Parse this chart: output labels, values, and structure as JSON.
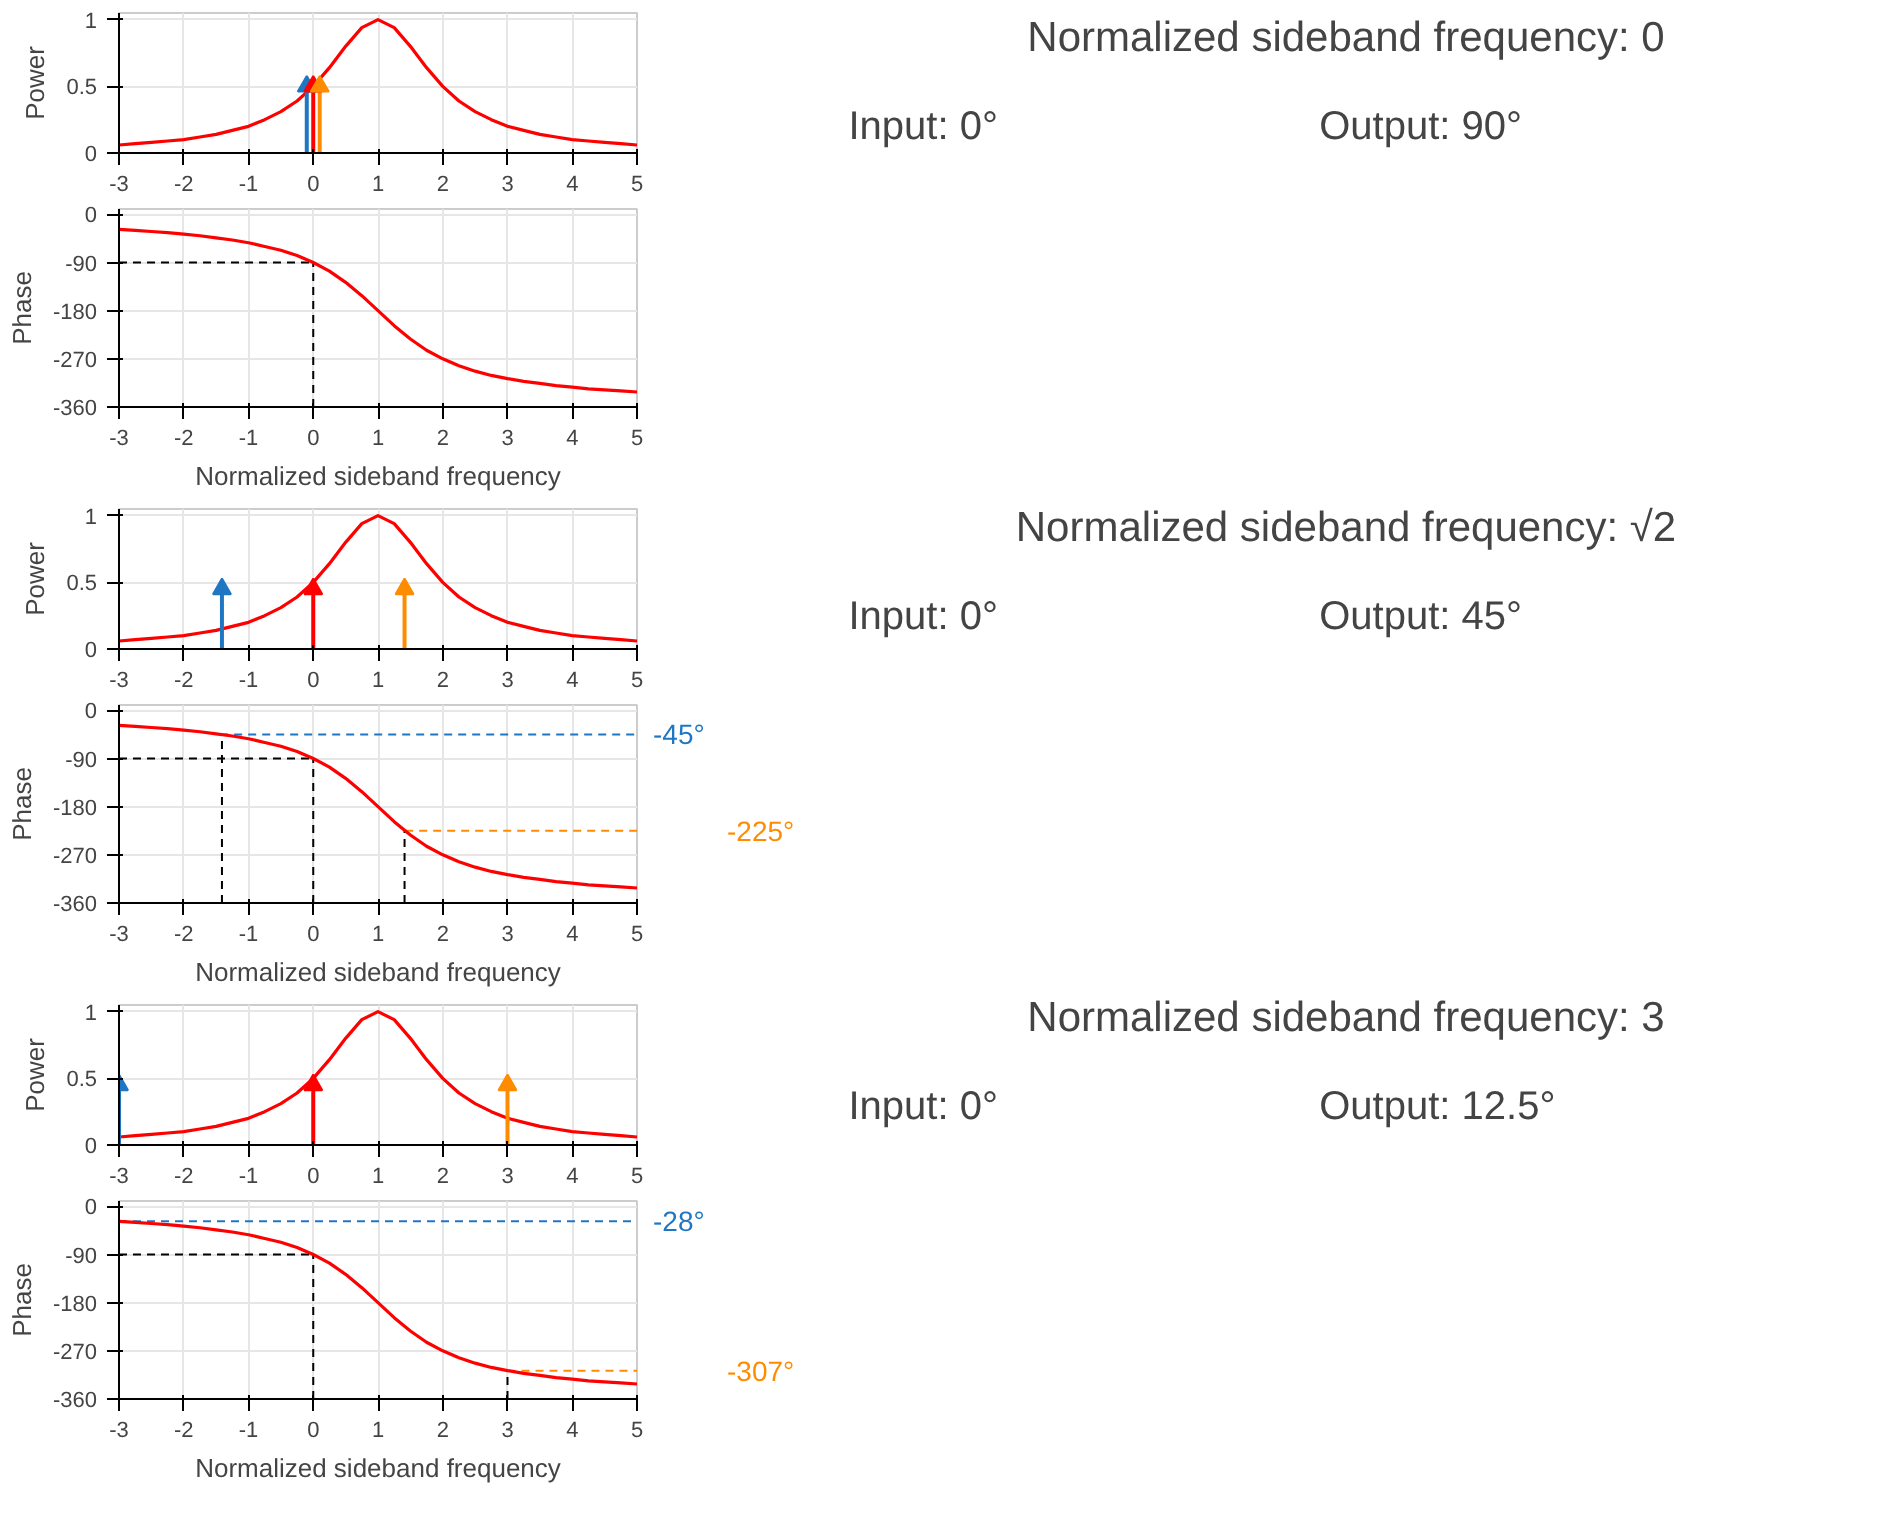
{
  "chart_data": [
    {
      "type": "line",
      "ylabel": "Power",
      "xlim": [
        -3,
        5
      ],
      "xticks": [
        -3,
        -2,
        -1,
        0,
        1,
        2,
        3,
        4,
        5
      ],
      "ylim": [
        0,
        1.05
      ],
      "yticks": [
        0,
        0.5,
        1
      ],
      "grid": true,
      "x": [
        -3,
        -2.75,
        -2.5,
        -2.25,
        -2,
        -1.75,
        -1.5,
        -1.25,
        -1,
        -0.75,
        -0.5,
        -0.25,
        0,
        0.25,
        0.5,
        0.75,
        1,
        1.25,
        1.5,
        1.75,
        2,
        2.25,
        2.5,
        2.75,
        3,
        3.25,
        3.5,
        3.75,
        4,
        4.25,
        4.5,
        4.75,
        5
      ],
      "series": [
        {
          "type": "line",
          "color": "#ff0000",
          "values": [
            0.06,
            0.07,
            0.08,
            0.09,
            0.1,
            0.12,
            0.14,
            0.17,
            0.2,
            0.25,
            0.31,
            0.39,
            0.5,
            0.64,
            0.8,
            0.94,
            1,
            0.94,
            0.8,
            0.64,
            0.5,
            0.39,
            0.31,
            0.25,
            0.2,
            0.17,
            0.14,
            0.12,
            0.1,
            0.09,
            0.08,
            0.07,
            0.06
          ]
        },
        {
          "type": "lollipop",
          "x": [
            -0.1,
            0,
            0.1
          ],
          "values": [
            0.5,
            0.5,
            0.5
          ],
          "colors": [
            "#1f77c4",
            "#ff0000",
            "#ff8c00"
          ]
        }
      ]
    },
    {
      "type": "line",
      "ylabel": "Phase",
      "xlabel": "Normalized sideband frequency",
      "xlim": [
        -3,
        5
      ],
      "xticks": [
        -3,
        -2,
        -1,
        0,
        1,
        2,
        3,
        4,
        5
      ],
      "ylim": [
        -360,
        10
      ],
      "yticks": [
        0,
        -90,
        -180,
        -270,
        -360
      ],
      "grid": true,
      "x": [
        -3,
        -2.75,
        -2.5,
        -2.25,
        -2,
        -1.75,
        -1.5,
        -1.25,
        -1,
        -0.75,
        -0.5,
        -0.25,
        0,
        0.25,
        0.5,
        0.75,
        1,
        1.25,
        1.5,
        1.75,
        2,
        2.25,
        2.5,
        2.75,
        3,
        3.25,
        3.5,
        3.75,
        4,
        4.25,
        4.5,
        4.75,
        5
      ],
      "series": [
        {
          "type": "line",
          "color": "#ff0000",
          "values": [
            -28,
            -30,
            -32,
            -34,
            -37,
            -40,
            -44,
            -48,
            -53,
            -60,
            -67,
            -77,
            -90,
            -106,
            -127,
            -152,
            -180,
            -208,
            -233,
            -254,
            -270,
            -283,
            -293,
            -301,
            -307,
            -312,
            -316,
            -320,
            -323,
            -326,
            -328,
            -330,
            -332
          ]
        }
      ],
      "ref_lines": [
        {
          "axis": "x",
          "value": 0,
          "line_style": "dashed"
        },
        {
          "axis": "y",
          "value": -90,
          "line_style": "dashed"
        }
      ]
    },
    {
      "type": "line",
      "ylabel": "Power",
      "xlim": [
        -3,
        5
      ],
      "xticks": [
        -3,
        -2,
        -1,
        0,
        1,
        2,
        3,
        4,
        5
      ],
      "ylim": [
        0,
        1.05
      ],
      "yticks": [
        0,
        0.5,
        1
      ],
      "grid": true,
      "x": [
        -3,
        -2.75,
        -2.5,
        -2.25,
        -2,
        -1.75,
        -1.5,
        -1.25,
        -1,
        -0.75,
        -0.5,
        -0.25,
        0,
        0.25,
        0.5,
        0.75,
        1,
        1.25,
        1.5,
        1.75,
        2,
        2.25,
        2.5,
        2.75,
        3,
        3.25,
        3.5,
        3.75,
        4,
        4.25,
        4.5,
        4.75,
        5
      ],
      "series": [
        {
          "type": "line",
          "color": "#ff0000",
          "values": [
            0.06,
            0.07,
            0.08,
            0.09,
            0.1,
            0.12,
            0.14,
            0.17,
            0.2,
            0.25,
            0.31,
            0.39,
            0.5,
            0.64,
            0.8,
            0.94,
            1,
            0.94,
            0.8,
            0.64,
            0.5,
            0.39,
            0.31,
            0.25,
            0.2,
            0.17,
            0.14,
            0.12,
            0.1,
            0.09,
            0.08,
            0.07,
            0.06
          ]
        },
        {
          "type": "lollipop",
          "x": [
            -1.41,
            0,
            1.41
          ],
          "values": [
            0.45,
            0.45,
            0.45
          ],
          "colors": [
            "#1f77c4",
            "#ff0000",
            "#ff8c00"
          ]
        }
      ]
    },
    {
      "type": "line",
      "ylabel": "Phase",
      "xlabel": "Normalized sideband frequency",
      "xlim": [
        -3,
        5
      ],
      "xticks": [
        -3,
        -2,
        -1,
        0,
        1,
        2,
        3,
        4,
        5
      ],
      "ylim": [
        -360,
        10
      ],
      "yticks": [
        0,
        -90,
        -180,
        -270,
        -360
      ],
      "grid": true,
      "x": [
        -3,
        -2.75,
        -2.5,
        -2.25,
        -2,
        -1.75,
        -1.5,
        -1.25,
        -1,
        -0.75,
        -0.5,
        -0.25,
        0,
        0.25,
        0.5,
        0.75,
        1,
        1.25,
        1.5,
        1.75,
        2,
        2.25,
        2.5,
        2.75,
        3,
        3.25,
        3.5,
        3.75,
        4,
        4.25,
        4.5,
        4.75,
        5
      ],
      "series": [
        {
          "type": "line",
          "color": "#ff0000",
          "values": [
            -28,
            -30,
            -32,
            -34,
            -37,
            -40,
            -44,
            -48,
            -53,
            -60,
            -67,
            -77,
            -90,
            -106,
            -127,
            -152,
            -180,
            -208,
            -233,
            -254,
            -270,
            -283,
            -293,
            -301,
            -307,
            -312,
            -316,
            -320,
            -323,
            -326,
            -328,
            -330,
            -332
          ]
        }
      ],
      "ref_lines": [
        {
          "axis": "x",
          "value": -1.41,
          "line_style": "dashed"
        },
        {
          "axis": "x",
          "value": 0,
          "line_style": "dashed"
        },
        {
          "axis": "x",
          "value": 1.41,
          "line_style": "dashed"
        },
        {
          "axis": "y",
          "value": -45,
          "label": "-45°",
          "color": "#1f77c4",
          "line_style": "dashed"
        },
        {
          "axis": "y",
          "value": -90,
          "line_style": "dashed"
        },
        {
          "axis": "y",
          "value": -225,
          "label": "-225°",
          "color": "#ff8c00",
          "line_style": "dashed"
        }
      ]
    },
    {
      "type": "line",
      "ylabel": "Power",
      "xlim": [
        -3,
        5
      ],
      "xticks": [
        -3,
        -2,
        -1,
        0,
        1,
        2,
        3,
        4,
        5
      ],
      "ylim": [
        0,
        1.05
      ],
      "yticks": [
        0,
        0.5,
        1
      ],
      "grid": true,
      "x": [
        -3,
        -2.75,
        -2.5,
        -2.25,
        -2,
        -1.75,
        -1.5,
        -1.25,
        -1,
        -0.75,
        -0.5,
        -0.25,
        0,
        0.25,
        0.5,
        0.75,
        1,
        1.25,
        1.5,
        1.75,
        2,
        2.25,
        2.5,
        2.75,
        3,
        3.25,
        3.5,
        3.75,
        4,
        4.25,
        4.5,
        4.75,
        5
      ],
      "series": [
        {
          "type": "line",
          "color": "#ff0000",
          "values": [
            0.06,
            0.07,
            0.08,
            0.09,
            0.1,
            0.12,
            0.14,
            0.17,
            0.2,
            0.25,
            0.31,
            0.39,
            0.5,
            0.64,
            0.8,
            0.94,
            1,
            0.94,
            0.8,
            0.64,
            0.5,
            0.39,
            0.31,
            0.25,
            0.2,
            0.17,
            0.14,
            0.12,
            0.1,
            0.09,
            0.08,
            0.07,
            0.06
          ]
        },
        {
          "type": "lollipop",
          "x": [
            -3,
            0,
            3
          ],
          "values": [
            0.45,
            0.45,
            0.45
          ],
          "colors": [
            "#1f77c4",
            "#ff0000",
            "#ff8c00"
          ]
        }
      ]
    },
    {
      "type": "line",
      "ylabel": "Phase",
      "xlabel": "Normalized sideband frequency",
      "xlim": [
        -3,
        5
      ],
      "xticks": [
        -3,
        -2,
        -1,
        0,
        1,
        2,
        3,
        4,
        5
      ],
      "ylim": [
        -360,
        10
      ],
      "yticks": [
        0,
        -90,
        -180,
        -270,
        -360
      ],
      "grid": true,
      "x": [
        -3,
        -2.75,
        -2.5,
        -2.25,
        -2,
        -1.75,
        -1.5,
        -1.25,
        -1,
        -0.75,
        -0.5,
        -0.25,
        0,
        0.25,
        0.5,
        0.75,
        1,
        1.25,
        1.5,
        1.75,
        2,
        2.25,
        2.5,
        2.75,
        3,
        3.25,
        3.5,
        3.75,
        4,
        4.25,
        4.5,
        4.75,
        5
      ],
      "series": [
        {
          "type": "line",
          "color": "#ff0000",
          "values": [
            -28,
            -30,
            -32,
            -34,
            -37,
            -40,
            -44,
            -48,
            -53,
            -60,
            -67,
            -77,
            -90,
            -106,
            -127,
            -152,
            -180,
            -208,
            -233,
            -254,
            -270,
            -283,
            -293,
            -301,
            -307,
            -312,
            -316,
            -320,
            -323,
            -326,
            -328,
            -330,
            -332
          ]
        }
      ],
      "ref_lines": [
        {
          "axis": "x",
          "value": 0,
          "line_style": "dashed"
        },
        {
          "axis": "x",
          "value": 3,
          "line_style": "dashed"
        },
        {
          "axis": "y",
          "value": -28,
          "label": "-28°",
          "color": "#1f77c4",
          "line_style": "dashed"
        },
        {
          "axis": "y",
          "value": -90,
          "line_style": "dashed"
        },
        {
          "axis": "y",
          "value": -307,
          "label": "-307°",
          "color": "#ff8c00",
          "line_style": "dashed"
        }
      ]
    },
    {
      "type": "other",
      "title": "Normalized sideband frequency: 0",
      "annotations": [
        "Input: 0°",
        "Output: 90°"
      ]
    },
    {
      "type": "other",
      "title": "Normalized sideband frequency: √2",
      "annotations": [
        "Input: 0°",
        "Output: 45°"
      ]
    },
    {
      "type": "other",
      "title": "Normalized sideband frequency: 3",
      "annotations": [
        "Input: 0°",
        "Output: 12.5°"
      ]
    }
  ]
}
